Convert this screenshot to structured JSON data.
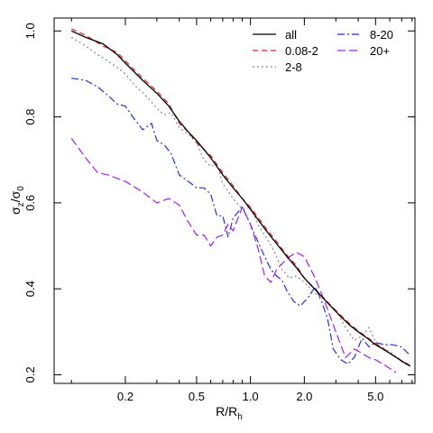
{
  "chart_data": {
    "type": "line",
    "xlabel": "R/R",
    "xlabel_sub": "h",
    "ylabel": "σ",
    "ylabel_sub_z": "z",
    "ylabel_sep": "/σ",
    "ylabel_sub_0": "0",
    "x_scale": "log",
    "xlim": [
      0.08,
      8.3
    ],
    "ylim": [
      0.18,
      1.03
    ],
    "xticks": [
      0.2,
      0.5,
      1.0,
      2.0,
      5.0
    ],
    "xtick_labels": [
      "0.2",
      "0.5",
      "1.0",
      "2.0",
      "5.0"
    ],
    "xticks_minor": [
      0.1,
      0.3,
      0.4,
      0.6,
      0.7,
      0.8,
      0.9,
      3,
      4,
      6,
      7,
      8
    ],
    "yticks": [
      0.2,
      0.4,
      0.6,
      0.8,
      1.0
    ],
    "ytick_labels": [
      "0.2",
      "0.4",
      "0.6",
      "0.8",
      "1.0"
    ],
    "legend_position": "top-right",
    "series": [
      {
        "name": "all",
        "color": "#000000",
        "dash": "",
        "x": [
          0.1,
          0.12,
          0.15,
          0.18,
          0.2,
          0.25,
          0.3,
          0.35,
          0.4,
          0.45,
          0.5,
          0.6,
          0.7,
          0.8,
          0.9,
          1.0,
          1.2,
          1.4,
          1.6,
          1.8,
          2.0,
          2.4,
          2.8,
          3.2,
          3.6,
          4.0,
          4.5,
          5.0,
          5.5,
          6.0,
          7.0,
          7.8
        ],
        "y": [
          1.0,
          0.985,
          0.97,
          0.945,
          0.925,
          0.885,
          0.855,
          0.825,
          0.79,
          0.765,
          0.745,
          0.705,
          0.665,
          0.635,
          0.61,
          0.585,
          0.54,
          0.505,
          0.475,
          0.45,
          0.425,
          0.39,
          0.36,
          0.335,
          0.315,
          0.3,
          0.285,
          0.27,
          0.26,
          0.25,
          0.232,
          0.22
        ]
      },
      {
        "name": "0.08-2",
        "color": "#e02020",
        "dash": "6,4",
        "x": [
          0.1,
          0.12,
          0.15,
          0.18,
          0.2,
          0.25,
          0.3,
          0.35,
          0.4,
          0.45,
          0.5,
          0.6,
          0.7,
          0.8,
          0.9,
          1.0,
          1.2,
          1.4,
          1.6,
          1.8,
          2.0,
          2.4,
          2.8,
          3.2,
          3.6,
          4.0,
          4.5,
          5.0,
          5.5,
          6.0,
          7.0,
          7.8
        ],
        "y": [
          1.005,
          0.99,
          0.965,
          0.95,
          0.93,
          0.89,
          0.86,
          0.83,
          0.785,
          0.765,
          0.74,
          0.71,
          0.67,
          0.64,
          0.61,
          0.59,
          0.545,
          0.51,
          0.478,
          0.455,
          0.425,
          0.392,
          0.362,
          0.338,
          0.318,
          0.302,
          0.287,
          0.273,
          0.262,
          0.25,
          0.233,
          0.222
        ]
      },
      {
        "name": "2-8",
        "color": "#888888",
        "dash": "2,3",
        "x": [
          0.1,
          0.12,
          0.14,
          0.16,
          0.18,
          0.2,
          0.23,
          0.26,
          0.3,
          0.33,
          0.36,
          0.4,
          0.45,
          0.5,
          0.55,
          0.6,
          0.65,
          0.7,
          0.8,
          0.9,
          1.0,
          1.1,
          1.2,
          1.35,
          1.5,
          1.65,
          1.8,
          2.0,
          2.3,
          2.6,
          3.0,
          3.4,
          3.8,
          4.2,
          4.6,
          5.0,
          5.5,
          6.0,
          7.0,
          7.8
        ],
        "y": [
          0.985,
          0.965,
          0.945,
          0.93,
          0.915,
          0.9,
          0.87,
          0.85,
          0.82,
          0.805,
          0.81,
          0.775,
          0.76,
          0.74,
          0.7,
          0.685,
          0.69,
          0.645,
          0.61,
          0.585,
          0.59,
          0.55,
          0.525,
          0.49,
          0.445,
          0.425,
          0.43,
          0.415,
          0.39,
          0.375,
          0.35,
          0.31,
          0.28,
          0.29,
          0.31,
          0.275,
          0.26,
          0.255,
          0.23,
          0.22
        ]
      },
      {
        "name": "8-20",
        "color": "#2233dd",
        "dash": "8,3,2,3",
        "x": [
          0.1,
          0.12,
          0.14,
          0.16,
          0.18,
          0.2,
          0.22,
          0.25,
          0.28,
          0.3,
          0.33,
          0.36,
          0.4,
          0.45,
          0.5,
          0.55,
          0.6,
          0.65,
          0.7,
          0.75,
          0.8,
          0.9,
          1.0,
          1.1,
          1.2,
          1.3,
          1.4,
          1.5,
          1.6,
          1.75,
          1.9,
          2.1,
          2.3,
          2.5,
          2.7,
          2.9,
          3.2,
          3.5,
          3.8,
          4.2,
          4.6,
          5.0,
          5.6,
          6.2,
          7.0,
          7.8
        ],
        "y": [
          0.89,
          0.885,
          0.87,
          0.85,
          0.83,
          0.825,
          0.8,
          0.77,
          0.785,
          0.745,
          0.735,
          0.715,
          0.665,
          0.65,
          0.635,
          0.635,
          0.62,
          0.57,
          0.57,
          0.52,
          0.565,
          0.59,
          0.55,
          0.51,
          0.475,
          0.445,
          0.43,
          0.42,
          0.395,
          0.37,
          0.36,
          0.38,
          0.405,
          0.37,
          0.33,
          0.26,
          0.235,
          0.225,
          0.24,
          0.285,
          0.265,
          0.275,
          0.27,
          0.27,
          0.265,
          0.245
        ]
      },
      {
        "name": "20+",
        "color": "#a020f0",
        "dash": "9,4",
        "x": [
          0.1,
          0.12,
          0.14,
          0.16,
          0.2,
          0.25,
          0.3,
          0.35,
          0.4,
          0.45,
          0.5,
          0.55,
          0.6,
          0.65,
          0.7,
          0.75,
          0.8,
          0.9,
          1.0,
          1.1,
          1.2,
          1.3,
          1.4,
          1.6,
          1.8,
          2.0,
          2.3,
          2.6,
          3.0,
          3.4,
          3.8,
          4.2,
          4.6,
          5.0,
          5.5,
          6.0,
          6.5
        ],
        "y": [
          0.75,
          0.705,
          0.67,
          0.665,
          0.65,
          0.625,
          0.6,
          0.61,
          0.595,
          0.555,
          0.525,
          0.525,
          0.5,
          0.52,
          0.525,
          0.55,
          0.535,
          0.59,
          0.55,
          0.495,
          0.43,
          0.415,
          0.445,
          0.47,
          0.485,
          0.475,
          0.425,
          0.37,
          0.3,
          0.24,
          0.26,
          0.25,
          0.24,
          0.235,
          0.225,
          0.215,
          0.205
        ]
      }
    ]
  }
}
